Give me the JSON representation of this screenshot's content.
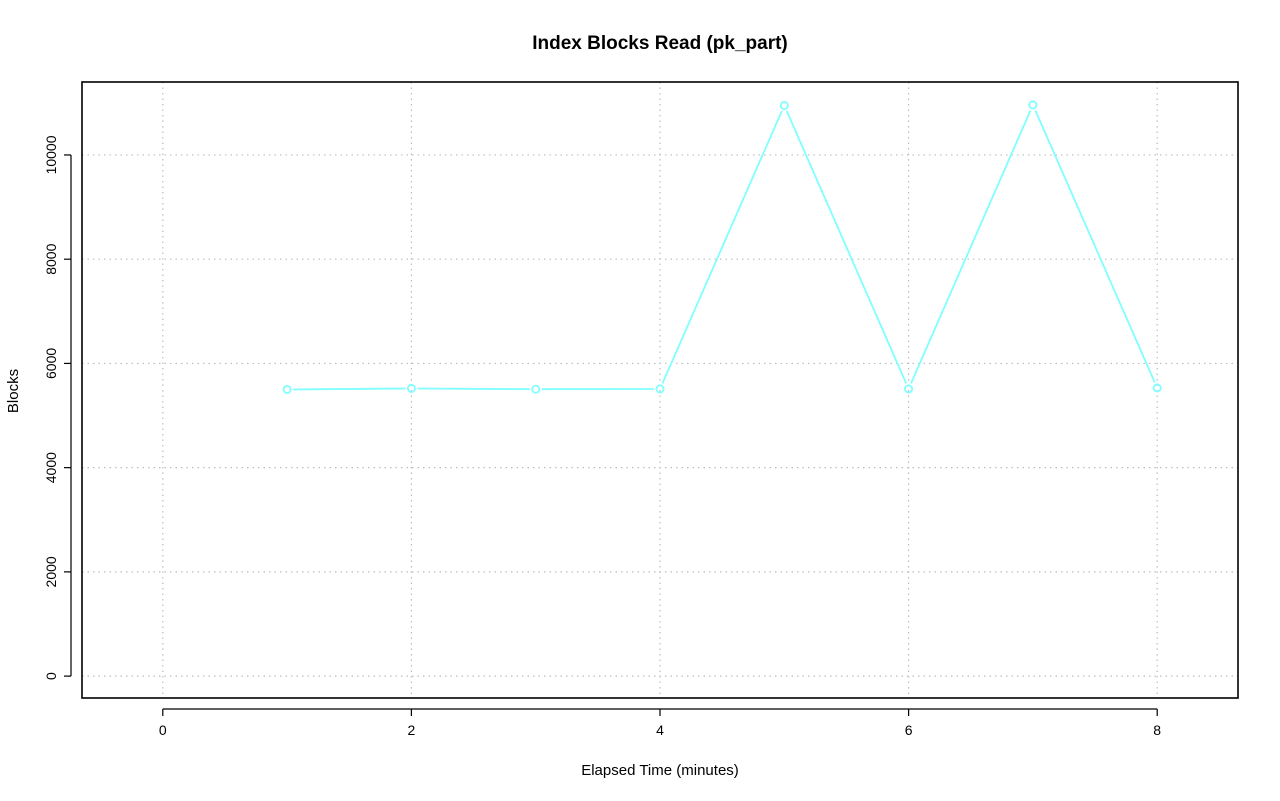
{
  "chart_data": {
    "type": "line",
    "title": "Index Blocks Read (pk_part)",
    "xlabel": "Elapsed Time (minutes)",
    "ylabel": "Blocks",
    "xlim": [
      -0.65,
      8.65
    ],
    "ylim": [
      -420,
      11400
    ],
    "xticks": [
      0,
      2,
      4,
      6,
      8
    ],
    "xtick_labels": [
      "0",
      "2",
      "4",
      "6",
      "8"
    ],
    "yticks": [
      0,
      2000,
      4000,
      6000,
      8000,
      10000
    ],
    "ytick_labels": [
      "0",
      "2000",
      "4000",
      "6000",
      "8000",
      "10000"
    ],
    "grid": true,
    "legend": "none",
    "series": [
      {
        "color": "#7fffff",
        "marker": "open-circle",
        "x": [
          1,
          2,
          3,
          4,
          5,
          6,
          7,
          8
        ],
        "values": [
          5500,
          5520,
          5505,
          5510,
          10950,
          5510,
          10960,
          5530
        ]
      }
    ]
  }
}
